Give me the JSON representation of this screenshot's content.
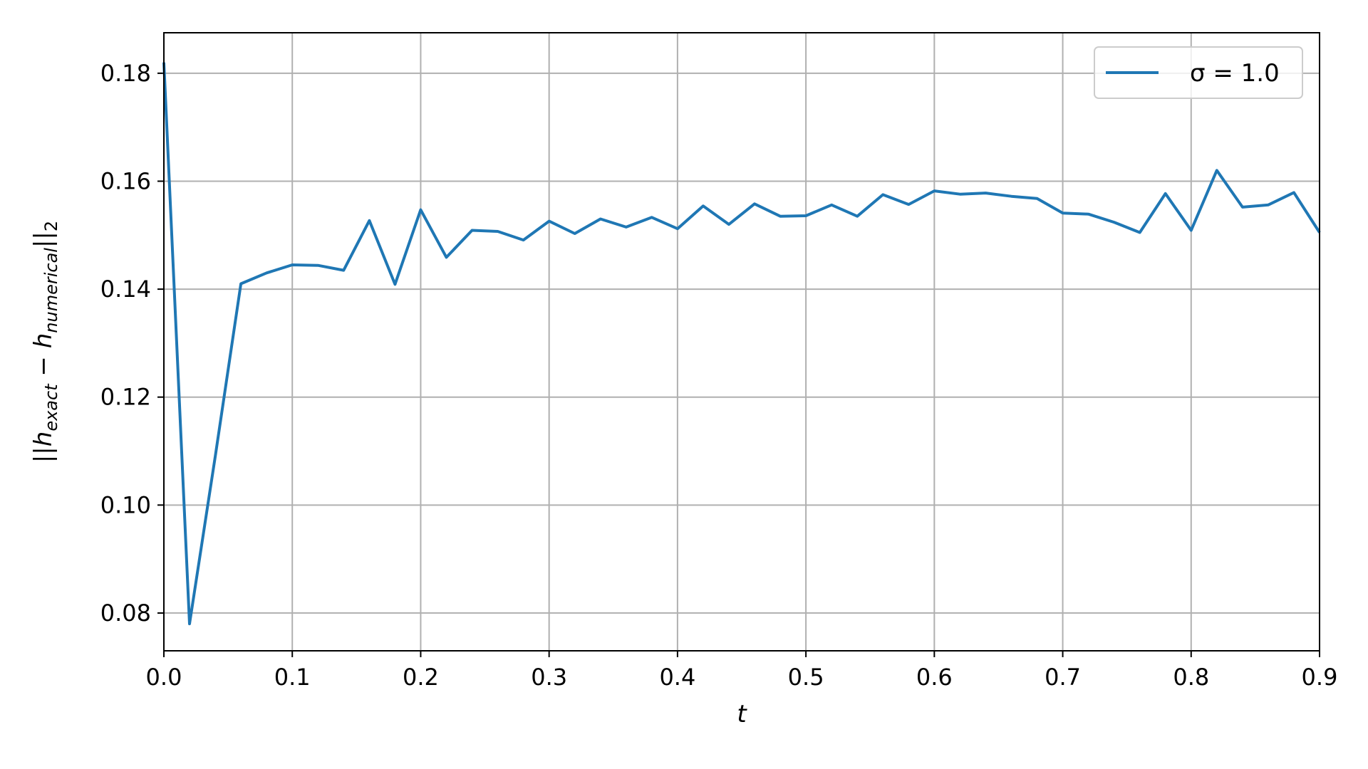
{
  "chart_data": {
    "type": "line",
    "xlabel": "t",
    "ylabel": "||h_exact − h_numerical||_2",
    "xlim": [
      0.0,
      0.9
    ],
    "ylim": [
      0.073,
      0.1875
    ],
    "grid": true,
    "legend_position": "top-right",
    "x_ticks": [
      "0.0",
      "0.1",
      "0.2",
      "0.3",
      "0.4",
      "0.5",
      "0.6",
      "0.7",
      "0.8",
      "0.9"
    ],
    "y_ticks": [
      "0.08",
      "0.10",
      "0.12",
      "0.14",
      "0.16",
      "0.18"
    ],
    "series": [
      {
        "name": "σ = 1.0",
        "color": "#1f77b4",
        "x": [
          0.0,
          0.02,
          0.04,
          0.06,
          0.08,
          0.1,
          0.12,
          0.14,
          0.16,
          0.18,
          0.2,
          0.22,
          0.24,
          0.26,
          0.28,
          0.3,
          0.32,
          0.34,
          0.36,
          0.38,
          0.4,
          0.42,
          0.44,
          0.46,
          0.48,
          0.5,
          0.52,
          0.54,
          0.56,
          0.58,
          0.6,
          0.62,
          0.64,
          0.66,
          0.68,
          0.7,
          0.72,
          0.74,
          0.76,
          0.78,
          0.8,
          0.82,
          0.84,
          0.86,
          0.88,
          0.9
        ],
        "y": [
          0.182,
          0.078,
          0.109,
          0.141,
          0.143,
          0.1445,
          0.1444,
          0.1435,
          0.1527,
          0.1409,
          0.1547,
          0.1459,
          0.1509,
          0.1507,
          0.1491,
          0.1526,
          0.1503,
          0.153,
          0.1515,
          0.1533,
          0.1512,
          0.1554,
          0.152,
          0.1558,
          0.1535,
          0.1536,
          0.1556,
          0.1535,
          0.1575,
          0.1557,
          0.1582,
          0.1576,
          0.1578,
          0.1572,
          0.1568,
          0.1541,
          0.1539,
          0.1524,
          0.1505,
          0.1577,
          0.1509,
          0.162,
          0.1552,
          0.1556,
          0.1579,
          0.1505
        ]
      }
    ]
  }
}
